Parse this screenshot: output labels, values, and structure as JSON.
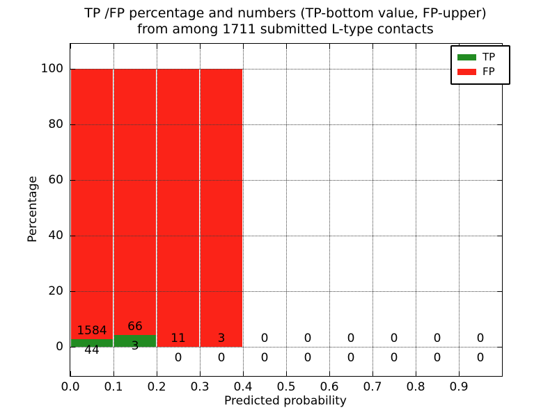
{
  "figure": {
    "title_line1": "TP /FP percentage and numbers (TP-bottom value, FP-upper)",
    "title_line2": "from among 1711 submitted L-type contacts"
  },
  "chart_data": {
    "type": "bar",
    "stacked": true,
    "normalized_to_percent": true,
    "title": "TP /FP percentage and numbers (TP-bottom value, FP-upper) from among 1711 submitted L-type contacts",
    "xlabel": "Predicted probability",
    "ylabel": "Percentage",
    "total_submitted": 1711,
    "xlim": [
      0.0,
      1.0
    ],
    "ylim": [
      -10.5,
      109.5
    ],
    "grid": "dotted",
    "legend_position": "upper right",
    "bin_width": 0.1,
    "bin_starts": [
      0.0,
      0.1,
      0.2,
      0.3,
      0.4,
      0.5,
      0.6,
      0.7,
      0.8,
      0.9
    ],
    "x_tick_values": [
      0.0,
      0.1,
      0.2,
      0.3,
      0.4,
      0.5,
      0.6,
      0.7,
      0.8,
      0.9
    ],
    "x_tick_labels": [
      "0.0",
      "0.1",
      "0.2",
      "0.3",
      "0.4",
      "0.5",
      "0.6",
      "0.7",
      "0.8",
      "0.9"
    ],
    "y_tick_values": [
      0,
      20,
      40,
      60,
      80,
      100
    ],
    "y_tick_labels": [
      "0",
      "20",
      "40",
      "60",
      "80",
      "100"
    ],
    "series": [
      {
        "name": "TP",
        "color": "#228b22",
        "counts": [
          44,
          3,
          0,
          0,
          0,
          0,
          0,
          0,
          0,
          0
        ]
      },
      {
        "name": "FP",
        "color": "#fb2318",
        "counts": [
          1584,
          66,
          11,
          3,
          0,
          0,
          0,
          0,
          0,
          0
        ]
      }
    ],
    "tp_count_labels": [
      "44",
      "3",
      "0",
      "0",
      "0",
      "0",
      "0",
      "0",
      "0",
      "0"
    ],
    "fp_count_labels": [
      "1584",
      "66",
      "11",
      "3",
      "0",
      "0",
      "0",
      "0",
      "0",
      "0"
    ]
  }
}
